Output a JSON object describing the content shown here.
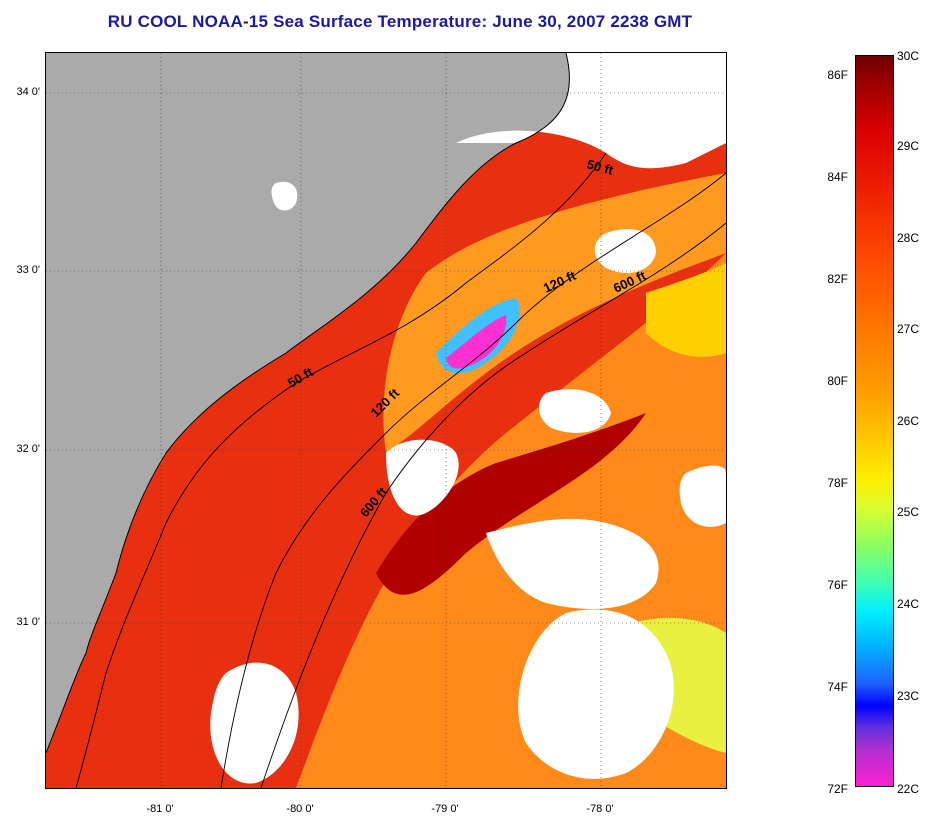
{
  "title": "RU COOL  NOAA-15  Sea Surface Temperature:  June 30, 2007 2238 GMT",
  "y_ticks": [
    "34 0'",
    "33 0'",
    "32 0'",
    "31 0'"
  ],
  "x_ticks": [
    "-81 0'",
    "-80 0'",
    "-79 0'",
    "-78 0'"
  ],
  "contours": [
    "50 ft",
    "50 ft",
    "120 ft",
    "120 ft",
    "600 ft",
    "600 ft"
  ],
  "colorbar": {
    "fahrenheit": [
      "86F",
      "84F",
      "82F",
      "80F",
      "78F",
      "76F",
      "74F",
      "72F"
    ],
    "celsius": [
      "30C",
      "29C",
      "28C",
      "27C",
      "26C",
      "25C",
      "24C",
      "23C",
      "22C"
    ]
  },
  "colors": {
    "land": "#aaaaaa",
    "cloud": "#ffffff",
    "warm": "#e02000",
    "hot": "#a00000",
    "mid": "#ff8800",
    "cool": "#ffcc00",
    "cold": "#ff33cc"
  }
}
